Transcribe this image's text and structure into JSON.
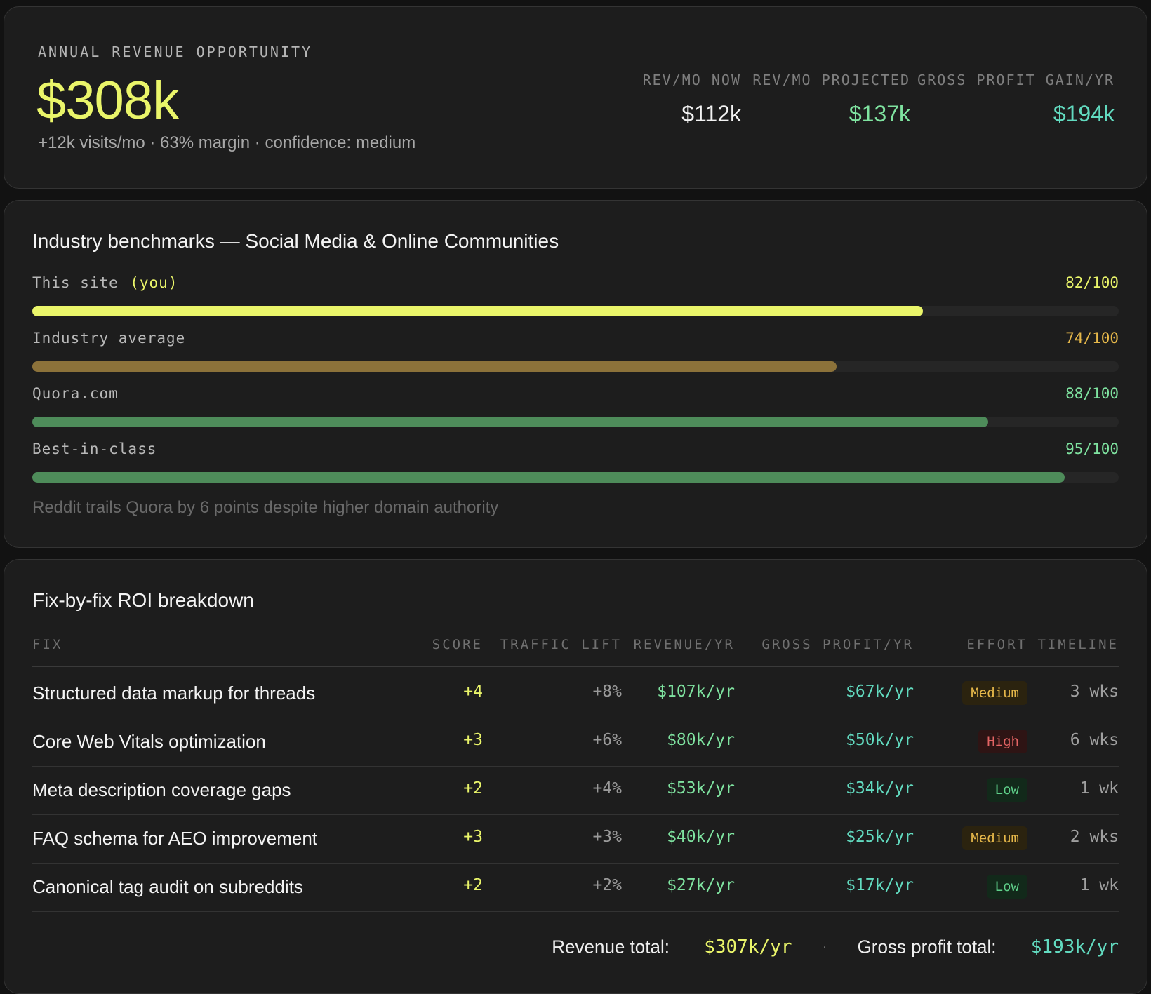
{
  "revenue": {
    "label": "ANNUAL REVENUE OPPORTUNITY",
    "value": "$308k",
    "subtitle": "+12k visits/mo · 63% margin · confidence: medium",
    "metrics": [
      {
        "label": "REV/MO NOW",
        "value": "$112k",
        "color": "#f2f2f2"
      },
      {
        "label": "REV/MO PROJECTED",
        "value": "$137k",
        "color": "#7fe3a0"
      },
      {
        "label": "GROSS PROFIT GAIN/YR",
        "value": "$194k",
        "color": "#62dbc0"
      }
    ]
  },
  "benchmarks": {
    "title": "Industry benchmarks — Social Media & Online Communities",
    "rows": [
      {
        "label": "This site",
        "label_suffix": "(you)",
        "score_text": "82/100",
        "score": 82,
        "bar_color": "#eaf56a",
        "score_color": "#eaf56a"
      },
      {
        "label": "Industry average",
        "label_suffix": "",
        "score_text": "74/100",
        "score": 74,
        "bar_color": "#8c723a",
        "score_color": "#e6b84a"
      },
      {
        "label": "Quora.com",
        "label_suffix": "",
        "score_text": "88/100",
        "score": 88,
        "bar_color": "#4e8c5a",
        "score_color": "#7fe3a0"
      },
      {
        "label": "Best-in-class",
        "label_suffix": "",
        "score_text": "95/100",
        "score": 95,
        "bar_color": "#4e8c5a",
        "score_color": "#7fe3a0"
      }
    ],
    "note": "Reddit trails Quora by 6 points despite higher domain authority"
  },
  "roi": {
    "title": "Fix-by-fix ROI breakdown",
    "columns": {
      "fix": "FIX",
      "score": "SCORE",
      "traffic": "TRAFFIC LIFT",
      "revenue": "REVENUE/YR",
      "profit": "GROSS PROFIT/YR",
      "effort": "EFFORT",
      "timeline": "TIMELINE"
    },
    "rows": [
      {
        "fix": "Structured data markup for threads",
        "score": "+4",
        "traffic": "+8%",
        "revenue": "$107k/yr",
        "profit": "$67k/yr",
        "effort": "Medium",
        "effort_level": "medium",
        "timeline": "3 wks"
      },
      {
        "fix": "Core Web Vitals optimization",
        "score": "+3",
        "traffic": "+6%",
        "revenue": "$80k/yr",
        "profit": "$50k/yr",
        "effort": "High",
        "effort_level": "high",
        "timeline": "6 wks"
      },
      {
        "fix": "Meta description coverage gaps",
        "score": "+2",
        "traffic": "+4%",
        "revenue": "$53k/yr",
        "profit": "$34k/yr",
        "effort": "Low",
        "effort_level": "low",
        "timeline": "1 wk"
      },
      {
        "fix": "FAQ schema for AEO improvement",
        "score": "+3",
        "traffic": "+3%",
        "revenue": "$40k/yr",
        "profit": "$25k/yr",
        "effort": "Medium",
        "effort_level": "medium",
        "timeline": "2 wks"
      },
      {
        "fix": "Canonical tag audit on subreddits",
        "score": "+2",
        "traffic": "+2%",
        "revenue": "$27k/yr",
        "profit": "$17k/yr",
        "effort": "Low",
        "effort_level": "low",
        "timeline": "1 wk"
      }
    ],
    "totals": {
      "revenue_label": "Revenue total:",
      "revenue_value": "$307k/yr",
      "separator": "·",
      "profit_label": "Gross profit total:",
      "profit_value": "$193k/yr"
    }
  },
  "colors": {
    "accent_yellow": "#eaf56a",
    "green": "#7fe3a0",
    "teal": "#62dbc0",
    "amber": "#e6b84a",
    "red": "#e36464"
  }
}
